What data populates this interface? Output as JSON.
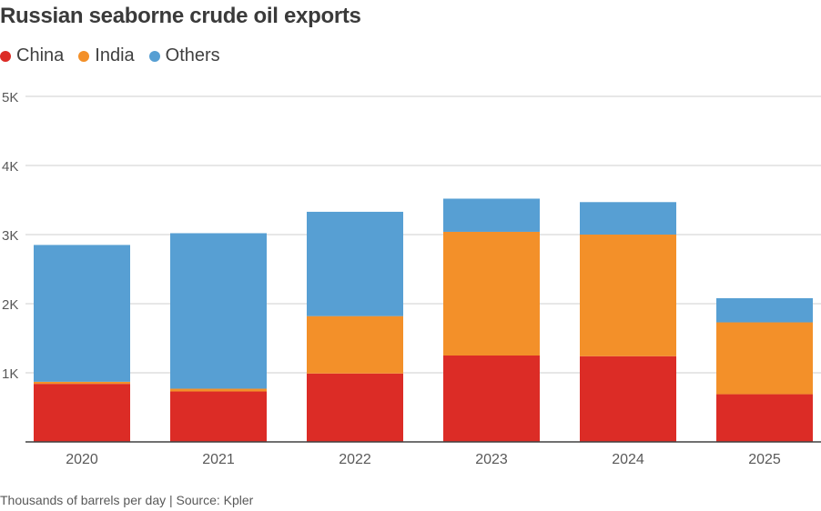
{
  "title": "Russian seaborne crude oil exports",
  "footnote": "Thousands of barrels per day | Source: Kpler",
  "colors": {
    "China": "#dc2c26",
    "India": "#f39029",
    "Others": "#579fd3",
    "grid": "#cfcfcf",
    "axis": "#404040"
  },
  "chart_data": {
    "type": "bar",
    "stacked": true,
    "categories": [
      "2020",
      "2021",
      "2022",
      "2023",
      "2024",
      "2025"
    ],
    "series": [
      {
        "name": "China",
        "values": [
          840,
          730,
          990,
          1250,
          1240,
          690
        ]
      },
      {
        "name": "India",
        "values": [
          30,
          40,
          830,
          1790,
          1760,
          1040
        ]
      },
      {
        "name": "Others",
        "values": [
          1980,
          2250,
          1510,
          480,
          470,
          350
        ]
      }
    ],
    "ylim": [
      0,
      5000
    ],
    "yticks": [
      1000,
      2000,
      3000,
      4000,
      5000
    ],
    "ytick_labels": [
      "1K",
      "2K",
      "3K",
      "4K",
      "5K"
    ],
    "legend_position": "top-left",
    "grid": true
  }
}
